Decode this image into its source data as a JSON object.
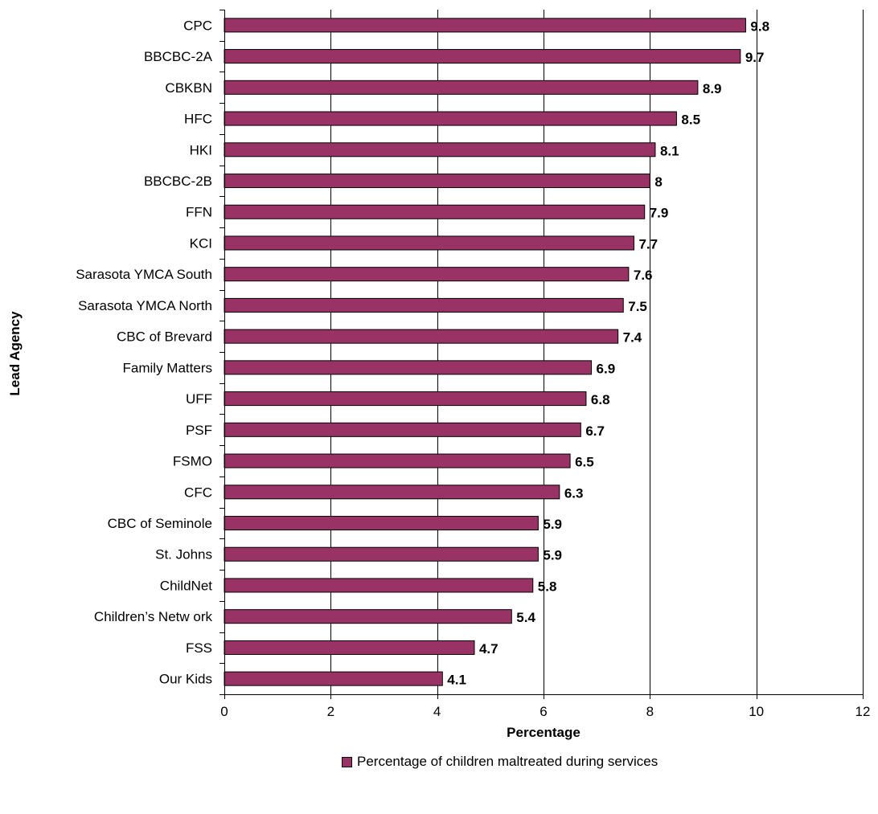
{
  "colors": {
    "bar": "#993366",
    "bar_stroke": "#000000",
    "gridline": "#000000"
  },
  "chart_data": {
    "type": "bar",
    "orientation": "horizontal",
    "title": "",
    "xlabel": "Percentage",
    "ylabel": "Lead Agency",
    "xlim": [
      0,
      12
    ],
    "xticks": [
      0,
      2,
      4,
      6,
      8,
      10,
      12
    ],
    "grid": "vertical",
    "legend_position": "bottom",
    "categories": [
      "CPC",
      "BBCBC-2A",
      "CBKBN",
      "HFC",
      "HKI",
      "BBCBC-2B",
      "FFN",
      "KCI",
      "Sarasota YMCA South",
      "Sarasota YMCA North",
      "CBC of Brevard",
      "Family Matters",
      "UFF",
      "PSF",
      "FSMO",
      "CFC",
      "CBC of Seminole",
      "St. Johns",
      "ChildNet",
      "Children’s Netw ork",
      "FSS",
      "Our Kids"
    ],
    "series": [
      {
        "name": "Percentage of  children maltreated during services",
        "values": [
          9.8,
          9.7,
          8.9,
          8.5,
          8.1,
          8,
          7.9,
          7.7,
          7.6,
          7.5,
          7.4,
          6.9,
          6.8,
          6.7,
          6.5,
          6.3,
          5.9,
          5.9,
          5.8,
          5.4,
          4.7,
          4.1
        ]
      }
    ]
  }
}
